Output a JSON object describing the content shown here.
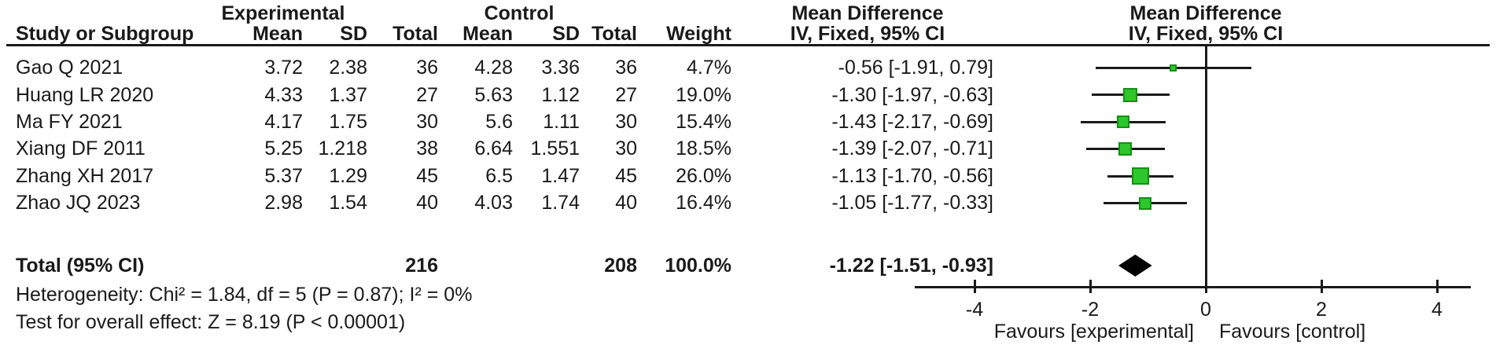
{
  "headers": {
    "group_experimental": "Experimental",
    "group_control": "Control",
    "md_left": "Mean Difference",
    "md_right": "Mean Difference",
    "study": "Study or Subgroup",
    "mean": "Mean",
    "sd": "SD",
    "total": "Total",
    "weight": "Weight",
    "iv_left": "IV, Fixed, 95% CI",
    "iv_right": "IV, Fixed, 95% CI"
  },
  "rows": [
    {
      "study": "Gao Q 2021",
      "mean1": "3.72",
      "sd1": "2.38",
      "total1": "36",
      "mean2": "4.28",
      "sd2": "3.36",
      "total2": "36",
      "weight": "4.7%",
      "ci": "-0.56 [-1.91, 0.79]"
    },
    {
      "study": "Huang LR 2020",
      "mean1": "4.33",
      "sd1": "1.37",
      "total1": "27",
      "mean2": "5.63",
      "sd2": "1.12",
      "total2": "27",
      "weight": "19.0%",
      "ci": "-1.30 [-1.97, -0.63]"
    },
    {
      "study": "Ma FY 2021",
      "mean1": "4.17",
      "sd1": "1.75",
      "total1": "30",
      "mean2": "5.6",
      "sd2": "1.11",
      "total2": "30",
      "weight": "15.4%",
      "ci": "-1.43 [-2.17, -0.69]"
    },
    {
      "study": "Xiang DF 2011",
      "mean1": "5.25",
      "sd1": "1.218",
      "total1": "38",
      "mean2": "6.64",
      "sd2": "1.551",
      "total2": "30",
      "weight": "18.5%",
      "ci": "-1.39 [-2.07, -0.71]"
    },
    {
      "study": "Zhang XH 2017",
      "mean1": "5.37",
      "sd1": "1.29",
      "total1": "45",
      "mean2": "6.5",
      "sd2": "1.47",
      "total2": "45",
      "weight": "26.0%",
      "ci": "-1.13 [-1.70, -0.56]"
    },
    {
      "study": "Zhao JQ 2023",
      "mean1": "2.98",
      "sd1": "1.54",
      "total1": "40",
      "mean2": "4.03",
      "sd2": "1.74",
      "total2": "40",
      "weight": "16.4%",
      "ci": "-1.05 [-1.77, -0.33]"
    }
  ],
  "total_row": {
    "label": "Total (95% CI)",
    "total1": "216",
    "total2": "208",
    "weight": "100.0%",
    "ci": "-1.22 [-1.51, -0.93]"
  },
  "footnotes": {
    "heterogeneity": "Heterogeneity: Chi² = 1.84, df = 5 (P = 0.87); I² = 0%",
    "overall_effect": "Test for overall effect: Z = 8.19 (P < 0.00001)"
  },
  "chart_data": {
    "type": "forest",
    "effect_measure": "Mean Difference",
    "method": "IV, Fixed, 95% CI",
    "xlim": [
      -4,
      4
    ],
    "ticks": [
      -4,
      -2,
      0,
      2,
      4
    ],
    "grid": false,
    "favours_left": "Favours [experimental]",
    "favours_right": "Favours [control]",
    "marker_fill": "#2DC62D",
    "marker_border": "#119111",
    "line_color": "#1a1a1a",
    "studies": [
      {
        "name": "Gao Q 2021",
        "exp_mean": 3.72,
        "exp_sd": 2.38,
        "exp_n": 36,
        "ctl_mean": 4.28,
        "ctl_sd": 3.36,
        "ctl_n": 36,
        "weight_pct": 4.7,
        "md": -0.56,
        "ci_low": -1.91,
        "ci_high": 0.79
      },
      {
        "name": "Huang LR 2020",
        "exp_mean": 4.33,
        "exp_sd": 1.37,
        "exp_n": 27,
        "ctl_mean": 5.63,
        "ctl_sd": 1.12,
        "ctl_n": 27,
        "weight_pct": 19.0,
        "md": -1.3,
        "ci_low": -1.97,
        "ci_high": -0.63
      },
      {
        "name": "Ma FY 2021",
        "exp_mean": 4.17,
        "exp_sd": 1.75,
        "exp_n": 30,
        "ctl_mean": 5.6,
        "ctl_sd": 1.11,
        "ctl_n": 30,
        "weight_pct": 15.4,
        "md": -1.43,
        "ci_low": -2.17,
        "ci_high": -0.69
      },
      {
        "name": "Xiang DF 2011",
        "exp_mean": 5.25,
        "exp_sd": 1.218,
        "exp_n": 38,
        "ctl_mean": 6.64,
        "ctl_sd": 1.551,
        "ctl_n": 30,
        "weight_pct": 18.5,
        "md": -1.39,
        "ci_low": -2.07,
        "ci_high": -0.71
      },
      {
        "name": "Zhang XH 2017",
        "exp_mean": 5.37,
        "exp_sd": 1.29,
        "exp_n": 45,
        "ctl_mean": 6.5,
        "ctl_sd": 1.47,
        "ctl_n": 45,
        "weight_pct": 26.0,
        "md": -1.13,
        "ci_low": -1.7,
        "ci_high": -0.56
      },
      {
        "name": "Zhao JQ 2023",
        "exp_mean": 2.98,
        "exp_sd": 1.54,
        "exp_n": 40,
        "ctl_mean": 4.03,
        "ctl_sd": 1.74,
        "ctl_n": 40,
        "weight_pct": 16.4,
        "md": -1.05,
        "ci_low": -1.77,
        "ci_high": -0.33
      }
    ],
    "total": {
      "exp_n": 216,
      "ctl_n": 208,
      "weight_pct": 100.0,
      "md": -1.22,
      "ci_low": -1.51,
      "ci_high": -0.93
    },
    "heterogeneity": "Chi² = 1.84, df = 5 (P = 0.87); I² = 0%",
    "overall_effect": "Z = 8.19 (P < 0.00001)"
  }
}
